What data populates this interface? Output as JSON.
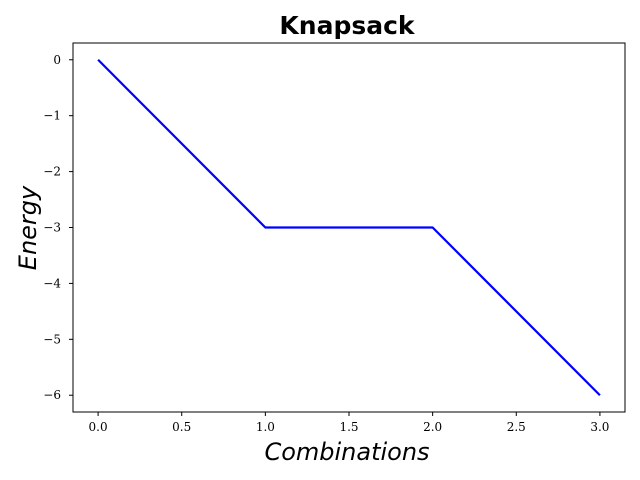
{
  "chart_data": {
    "type": "line",
    "title": "Knapsack",
    "xlabel": "Combinations",
    "ylabel": "Energy",
    "x": [
      0.0,
      1.0,
      2.0,
      3.0
    ],
    "series": [
      {
        "values": [
          0,
          -3,
          -3,
          -6
        ],
        "color": "#0000ff"
      }
    ],
    "xlim": [
      -0.15,
      3.15
    ],
    "ylim": [
      -6.3,
      0.3
    ],
    "xticks": [
      0.0,
      0.5,
      1.0,
      1.5,
      2.0,
      2.5,
      3.0
    ],
    "xtick_labels": [
      "0.0",
      "0.5",
      "1.0",
      "1.5",
      "2.0",
      "2.5",
      "3.0"
    ],
    "yticks": [
      0,
      -1,
      -2,
      -3,
      -4,
      -5,
      -6
    ],
    "ytick_labels": [
      "0",
      "−1",
      "−2",
      "−3",
      "−4",
      "−5",
      "−6"
    ],
    "grid": false,
    "legend": "none"
  }
}
